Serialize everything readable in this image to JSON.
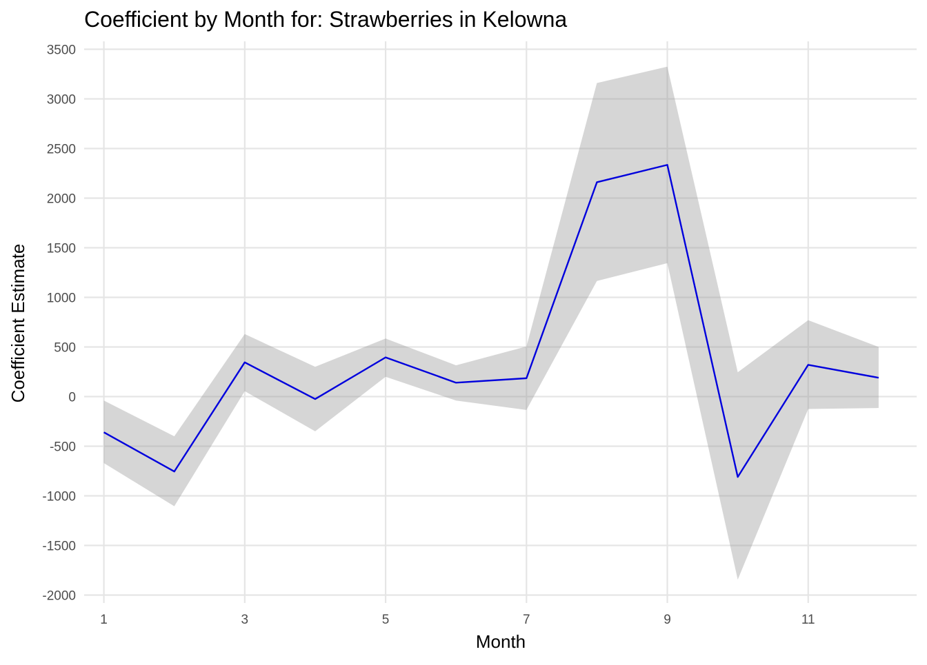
{
  "chart_data": {
    "type": "line",
    "title": "Coefficient by Month for: Strawberries in Kelowna",
    "xlabel": "Month",
    "ylabel": "Coefficient Estimate",
    "x": [
      1,
      2,
      3,
      4,
      5,
      6,
      7,
      8,
      9,
      10,
      11,
      12
    ],
    "xlim": [
      0.72,
      12.54
    ],
    "ylim": [
      -2080,
      3580
    ],
    "x_ticks": [
      1,
      3,
      5,
      7,
      9,
      11
    ],
    "x_tick_labels": [
      "1",
      "3",
      "5",
      "7",
      "9",
      "11"
    ],
    "y_ticks": [
      -2000,
      -1500,
      -1000,
      -500,
      0,
      500,
      1000,
      1500,
      2000,
      2500,
      3000,
      3500
    ],
    "y_tick_labels": [
      "-2000",
      "-1500",
      "-1000",
      "-500",
      "0",
      "500",
      "1000",
      "1500",
      "2000",
      "2500",
      "3000",
      "3500"
    ],
    "x_minor_ticks": [
      2,
      4,
      6,
      8,
      10,
      12
    ],
    "y_minor_ticks": [],
    "grid": true,
    "legend": "none",
    "series": [
      {
        "values": [
          -360,
          -755,
          345,
          -25,
          395,
          140,
          185,
          2160,
          2335,
          -810,
          320,
          190
        ],
        "color": "#0000dd"
      }
    ],
    "band": {
      "lower": [
        -670,
        -1105,
        55,
        -350,
        200,
        -40,
        -135,
        1165,
        1345,
        -1845,
        -125,
        -115
      ],
      "upper": [
        -40,
        -400,
        630,
        300,
        585,
        315,
        505,
        3160,
        3325,
        245,
        770,
        500
      ],
      "color": "#999999",
      "opacity": 0.4
    }
  }
}
